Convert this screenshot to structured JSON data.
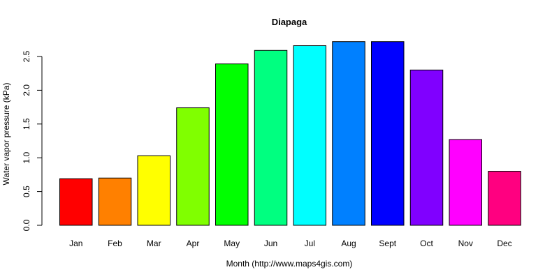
{
  "chart_data": {
    "type": "bar",
    "title": "Diapaga",
    "xlabel": "Month (http://www.maps4gis.com)",
    "ylabel": "Water vapor pressure (kPa)",
    "categories": [
      "Jan",
      "Feb",
      "Mar",
      "Apr",
      "May",
      "Jun",
      "Jul",
      "Aug",
      "Sept",
      "Oct",
      "Nov",
      "Dec"
    ],
    "values": [
      0.69,
      0.7,
      1.03,
      1.74,
      2.39,
      2.59,
      2.66,
      2.72,
      2.72,
      2.3,
      1.27,
      0.8
    ],
    "colors": [
      "#FF0000",
      "#FF8000",
      "#FFFF00",
      "#80FF00",
      "#00FF00",
      "#00FF80",
      "#00FFFF",
      "#0080FF",
      "#0000FF",
      "#8000FF",
      "#FF00FF",
      "#FF0080"
    ],
    "ylim": [
      0,
      2.5
    ],
    "yticks": [
      "0.0",
      "0.5",
      "1.0",
      "1.5",
      "2.0",
      "2.5"
    ],
    "grid": false,
    "legend": null
  }
}
